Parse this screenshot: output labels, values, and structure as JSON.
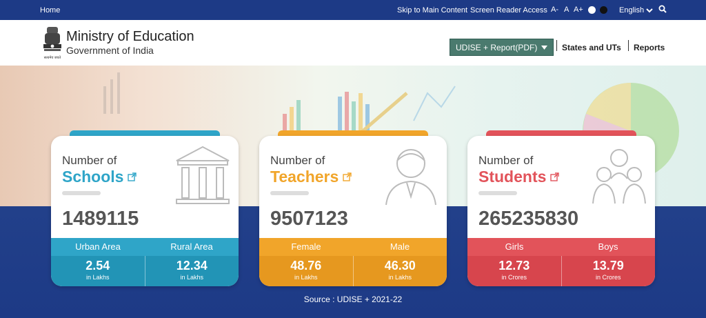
{
  "topbar": {
    "home": "Home",
    "skip": "Skip to Main Content",
    "screen_reader": "Screen Reader Access",
    "font_decrease": "A-",
    "font_normal": "A",
    "font_increase": "A+",
    "language": "English",
    "search_icon": "search-icon"
  },
  "header": {
    "title": "Ministry of Education",
    "subtitle": "Government of India",
    "emblem_caption": "सत्यमेव जयते",
    "udise_button": "UDISE + Report(PDF)",
    "nav": [
      "States and UTs",
      "Reports"
    ]
  },
  "cards": [
    {
      "small": "Number of",
      "big": "Schools",
      "number": "1489115",
      "sub_labels": [
        "Urban Area",
        "Rural Area"
      ],
      "sub_values": [
        "2.54",
        "12.34"
      ],
      "sub_units": [
        "in Lakhs",
        "in Lakhs"
      ],
      "color": "#2fa5c8",
      "dark": "#2294b6"
    },
    {
      "small": "Number of",
      "big": "Teachers",
      "number": "9507123",
      "sub_labels": [
        "Female",
        "Male"
      ],
      "sub_values": [
        "48.76",
        "46.30"
      ],
      "sub_units": [
        "in Lakhs",
        "in Lakhs"
      ],
      "color": "#f1a52a",
      "dark": "#e6981f"
    },
    {
      "small": "Number of",
      "big": "Students",
      "number": "265235830",
      "sub_labels": [
        "Girls",
        "Boys"
      ],
      "sub_values": [
        "12.73",
        "13.79"
      ],
      "sub_units": [
        "in Crores",
        "in Crores"
      ],
      "color": "#e2535a",
      "dark": "#d7454d"
    }
  ],
  "source": "Source : UDISE + 2021-22",
  "colors": {
    "topbar": "#1d3a86",
    "schools": "#2fa5c8",
    "teachers": "#f1a52a",
    "students": "#e2535a"
  }
}
